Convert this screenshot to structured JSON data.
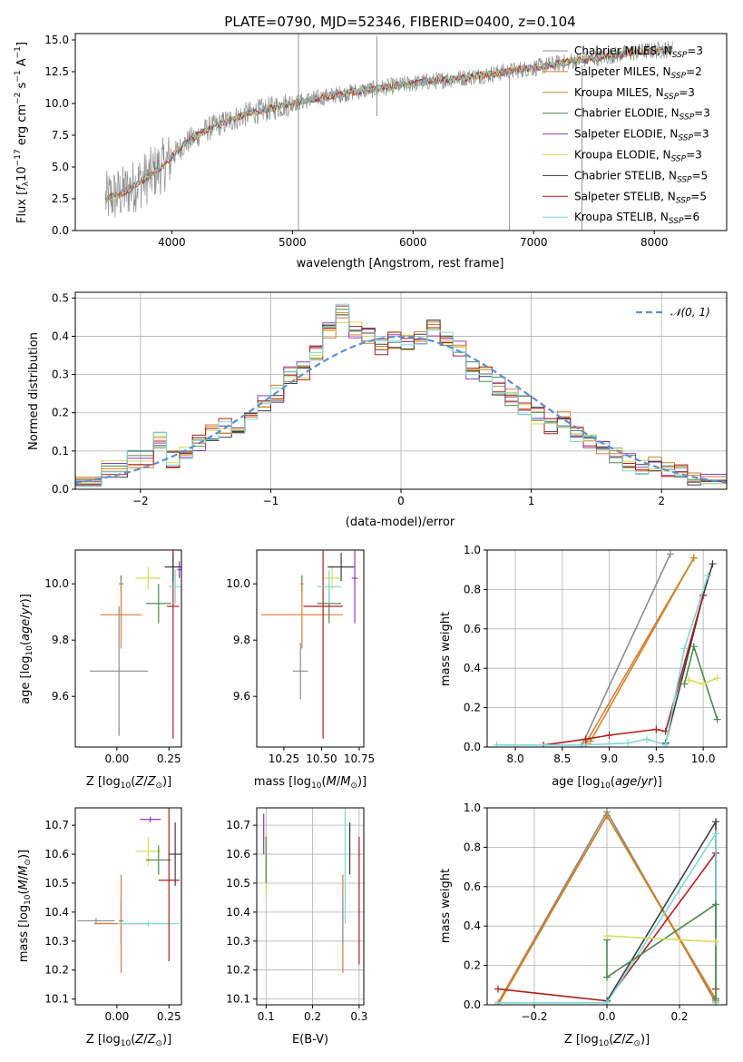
{
  "title": "PLATE=0790, MJD=52346, FIBERID=0400, z=0.104",
  "colors": {
    "series": [
      "#8c8c8c",
      "#e07b3a",
      "#c98522",
      "#4d8a4d",
      "#8f3cb5",
      "#d6dc5a",
      "#3d3d3d",
      "#b01e1e",
      "#7ed8dc"
    ],
    "gauss": "#5a8fd6",
    "grid": "#b0b0b0"
  },
  "chart_data": [
    {
      "id": "spectrum",
      "type": "line",
      "xlabel": "wavelength [Angstrom, rest frame]",
      "ylabel": "Flux [f_λ10^-17 erg cm^-2 s^-1 A^-1]",
      "xlim": [
        3200,
        8600
      ],
      "ylim": [
        0,
        15.5
      ],
      "xticks": [
        4000,
        5000,
        6000,
        7000,
        8000
      ],
      "yticks": [
        0.0,
        2.5,
        5.0,
        7.5,
        10.0,
        12.5,
        15.0
      ],
      "grid": false,
      "legend_position": "right",
      "continuum": {
        "x": [
          3450,
          3600,
          3800,
          3950,
          4100,
          4300,
          4600,
          4900,
          5200,
          5500,
          5800,
          6100,
          6400,
          6700,
          7000,
          7300,
          7600,
          7900,
          8150
        ],
        "y": [
          2.5,
          3.0,
          4.2,
          5.3,
          6.8,
          8.0,
          9.1,
          9.8,
          10.4,
          10.9,
          11.3,
          11.7,
          12.0,
          12.4,
          12.8,
          13.3,
          13.7,
          14.1,
          14.3
        ]
      },
      "spikes": [
        {
          "x": 5050,
          "y_low": 0,
          "y_high": 15.5
        },
        {
          "x": 5700,
          "y_low": 9.0,
          "y_high": 15.3
        },
        {
          "x": 6800,
          "y_low": 0,
          "y_high": 12.3
        },
        {
          "x": 7400,
          "y_low": 0,
          "y_high": 13.0
        }
      ],
      "legend": [
        "Chabrier MILES, N_SSP=3",
        "Salpeter MILES, N_SSP=2",
        "Kroupa MILES, N_SSP=3",
        "Chabrier ELODIE, N_SSP=3",
        "Salpeter ELODIE, N_SSP=3",
        "Kroupa ELODIE, N_SSP=3",
        "Chabrier STELIB, N_SSP=5",
        "Salpeter STELIB, N_SSP=5",
        "Kroupa STELIB, N_SSP=6"
      ],
      "legend_series_index": [
        0,
        1,
        2,
        3,
        4,
        5,
        6,
        7,
        8
      ]
    },
    {
      "id": "residuals",
      "type": "line",
      "xlabel": "(data-model)/error",
      "ylabel": "Normed distribution",
      "xlim": [
        -2.5,
        2.5
      ],
      "ylim": [
        0,
        0.515
      ],
      "xticks": [
        -2,
        -1,
        0,
        1,
        2
      ],
      "yticks": [
        0.0,
        0.1,
        0.2,
        0.3,
        0.4,
        0.5
      ],
      "grid": true,
      "legend_position": "top-right",
      "legend": [
        "𝒩(0, 1)"
      ],
      "bin_edges": [
        -2.5,
        -2.3,
        -2.1,
        -1.9,
        -1.8,
        -1.7,
        -1.6,
        -1.5,
        -1.4,
        -1.3,
        -1.2,
        -1.1,
        -1.0,
        -0.9,
        -0.8,
        -0.7,
        -0.6,
        -0.5,
        -0.4,
        -0.3,
        -0.2,
        -0.1,
        0.0,
        0.1,
        0.2,
        0.3,
        0.4,
        0.5,
        0.6,
        0.7,
        0.8,
        0.9,
        1.0,
        1.1,
        1.2,
        1.3,
        1.4,
        1.5,
        1.6,
        1.7,
        1.8,
        1.9,
        2.0,
        2.1,
        2.2,
        2.3,
        2.5
      ],
      "hist_base": [
        0.03,
        0.05,
        0.08,
        0.13,
        0.08,
        0.1,
        0.12,
        0.15,
        0.16,
        0.17,
        0.2,
        0.22,
        0.25,
        0.3,
        0.31,
        0.36,
        0.41,
        0.46,
        0.42,
        0.4,
        0.37,
        0.39,
        0.38,
        0.4,
        0.42,
        0.39,
        0.37,
        0.31,
        0.3,
        0.27,
        0.24,
        0.22,
        0.19,
        0.16,
        0.18,
        0.14,
        0.13,
        0.11,
        0.09,
        0.07,
        0.06,
        0.07,
        0.05,
        0.04,
        0.03,
        0.025
      ],
      "gauss": {
        "mean": 0,
        "sigma": 1
      }
    },
    {
      "id": "age-vs-z",
      "type": "scatter",
      "xlabel": "Z [log10(Z/Z⊙)]",
      "ylabel": "age [log10(age/yr)]",
      "xlim": [
        -0.2,
        0.31
      ],
      "ylim": [
        9.42,
        10.12
      ],
      "xticks": [
        0.0,
        0.25
      ],
      "yticks": [
        9.6,
        9.8,
        10.0
      ],
      "grid": false,
      "points": [
        {
          "s": 3,
          "x": 0.02,
          "y": 10.0,
          "xerr": 0.01,
          "yerr": 0.03
        },
        {
          "s": 1,
          "x": 0.02,
          "y": 9.89,
          "xerr": 0.1,
          "yerr": 0.12
        },
        {
          "s": 0,
          "x": 0.01,
          "y": 9.69,
          "xerr": 0.14,
          "yerr": 0.23
        },
        {
          "s": 5,
          "x": 0.15,
          "y": 10.02,
          "xerr": 0.06,
          "yerr": 0.04
        },
        {
          "s": 3,
          "x": 0.2,
          "y": 9.93,
          "xerr": 0.06,
          "yerr": 0.07
        },
        {
          "s": 7,
          "x": 0.27,
          "y": 9.92,
          "xerr": 0.03,
          "yerr": 0.47
        },
        {
          "s": 6,
          "x": 0.27,
          "y": 10.06,
          "xerr": 0.04,
          "yerr": 0.05
        },
        {
          "s": 8,
          "x": 0.28,
          "y": 9.99,
          "xerr": 0.03,
          "yerr": 0.06
        },
        {
          "s": 4,
          "x": 0.3,
          "y": 10.05,
          "xerr": 0.01,
          "yerr": 0.03
        }
      ]
    },
    {
      "id": "age-vs-mass",
      "type": "scatter",
      "xlabel": "mass [log10(M/M⊙)]",
      "ylabel": "",
      "xlim": [
        10.07,
        10.78
      ],
      "ylim": [
        9.42,
        10.12
      ],
      "xticks": [
        10.25,
        10.5,
        10.75
      ],
      "yticks": [
        9.6,
        9.8,
        10.0
      ],
      "grid": false,
      "points": [
        {
          "s": 3,
          "x": 10.37,
          "y": 10.0,
          "xerr": 0.01,
          "yerr": 0.03
        },
        {
          "s": 1,
          "x": 10.37,
          "y": 9.89,
          "xerr": 0.27,
          "yerr": 0.12
        },
        {
          "s": 0,
          "x": 10.36,
          "y": 9.69,
          "xerr": 0.05,
          "yerr": 0.1
        },
        {
          "s": 5,
          "x": 10.57,
          "y": 10.02,
          "xerr": 0.06,
          "yerr": 0.04
        },
        {
          "s": 3,
          "x": 10.55,
          "y": 9.93,
          "xerr": 0.08,
          "yerr": 0.07
        },
        {
          "s": 7,
          "x": 10.51,
          "y": 9.92,
          "xerr": 0.13,
          "yerr": 0.47
        },
        {
          "s": 6,
          "x": 10.63,
          "y": 10.06,
          "xerr": 0.09,
          "yerr": 0.05
        },
        {
          "s": 8,
          "x": 10.55,
          "y": 9.99,
          "xerr": 0.08,
          "yerr": 0.06
        },
        {
          "s": 4,
          "x": 10.72,
          "y": 10.02,
          "xerr": 0.02,
          "yerr": 0.16
        }
      ]
    },
    {
      "id": "mass-weight-vs-age",
      "type": "line",
      "xlabel": "age [log10(age/yr)]",
      "ylabel": "mass weight",
      "xlim": [
        7.7,
        10.25
      ],
      "ylim": [
        0,
        1.0
      ],
      "xticks": [
        8.0,
        8.5,
        9.0,
        9.5,
        10.0
      ],
      "yticks": [
        0.0,
        0.2,
        0.4,
        0.6,
        0.8,
        1.0
      ],
      "grid": true,
      "series": [
        {
          "s": 0,
          "x": [
            8.7,
            9.65
          ],
          "y": [
            0.0,
            0.98
          ]
        },
        {
          "s": 1,
          "x": [
            8.75,
            9.9
          ],
          "y": [
            0.02,
            0.96
          ]
        },
        {
          "s": 2,
          "x": [
            8.8,
            9.9
          ],
          "y": [
            0.03,
            0.96
          ]
        },
        {
          "s": 6,
          "x": [
            9.6,
            10.0,
            10.1
          ],
          "y": [
            0.02,
            0.77,
            0.93
          ]
        },
        {
          "s": 7,
          "x": [
            8.3,
            8.75,
            9.0,
            9.5,
            9.6,
            10.0
          ],
          "y": [
            0.01,
            0.04,
            0.06,
            0.09,
            0.08,
            0.77
          ]
        },
        {
          "s": 8,
          "x": [
            7.8,
            8.7,
            9.2,
            9.4,
            9.6,
            9.8,
            10.05
          ],
          "y": [
            0.01,
            0.01,
            0.02,
            0.04,
            0.01,
            0.5,
            0.87
          ]
        },
        {
          "s": 3,
          "x": [
            9.8,
            9.9,
            10.15
          ],
          "y": [
            0.32,
            0.51,
            0.14
          ]
        },
        {
          "s": 5,
          "x": [
            9.85,
            10.0,
            10.15
          ],
          "y": [
            0.34,
            0.32,
            0.35
          ]
        }
      ]
    },
    {
      "id": "mass-vs-z",
      "type": "scatter",
      "xlabel": "Z [log10(Z/Z⊙)]",
      "ylabel": "mass [log10(M/M⊙)]",
      "xlim": [
        -0.2,
        0.31
      ],
      "ylim": [
        10.08,
        10.76
      ],
      "xticks": [
        0.0,
        0.25
      ],
      "yticks": [
        10.1,
        10.2,
        10.3,
        10.4,
        10.5,
        10.6,
        10.7
      ],
      "grid": false,
      "points": [
        {
          "s": 0,
          "x": -0.1,
          "y": 10.37,
          "xerr": 0.09,
          "yerr": 0.01
        },
        {
          "s": 3,
          "x": 0.02,
          "y": 10.37,
          "xerr": 0.01,
          "yerr": 0.08
        },
        {
          "s": 1,
          "x": 0.02,
          "y": 10.36,
          "xerr": 0.13,
          "yerr": 0.17
        },
        {
          "s": 8,
          "x": 0.15,
          "y": 10.36,
          "xerr": 0.15,
          "yerr": 0.01
        },
        {
          "s": 4,
          "x": 0.16,
          "y": 10.72,
          "xerr": 0.05,
          "yerr": 0.01
        },
        {
          "s": 5,
          "x": 0.15,
          "y": 10.61,
          "xerr": 0.06,
          "yerr": 0.05
        },
        {
          "s": 3,
          "x": 0.2,
          "y": 10.58,
          "xerr": 0.06,
          "yerr": 0.05
        },
        {
          "s": 7,
          "x": 0.25,
          "y": 10.51,
          "xerr": 0.05,
          "yerr": 0.28
        },
        {
          "s": 6,
          "x": 0.28,
          "y": 10.6,
          "xerr": 0.03,
          "yerr": 0.11
        }
      ]
    },
    {
      "id": "mass-vs-ebv",
      "type": "scatter",
      "xlabel": "E(B-V)",
      "ylabel": "",
      "xlim": [
        0.08,
        0.31
      ],
      "ylim": [
        10.08,
        10.76
      ],
      "xticks": [
        0.1,
        0.2,
        0.3
      ],
      "yticks": [
        10.1,
        10.2,
        10.3,
        10.4,
        10.5,
        10.6,
        10.7
      ],
      "grid": true,
      "points": [
        {
          "s": 4,
          "x": 0.095,
          "y": 10.67,
          "xerr": 0.0,
          "yerr": 0.07
        },
        {
          "s": 5,
          "x": 0.1,
          "y": 10.57,
          "xerr": 0.0,
          "yerr": 0.1
        },
        {
          "s": 3,
          "x": 0.1,
          "y": 10.58,
          "xerr": 0.0,
          "yerr": 0.08
        },
        {
          "s": 1,
          "x": 0.265,
          "y": 10.36,
          "xerr": 0.0,
          "yerr": 0.17
        },
        {
          "s": 8,
          "x": 0.27,
          "y": 10.56,
          "xerr": 0.0,
          "yerr": 0.2
        },
        {
          "s": 0,
          "x": 0.265,
          "y": 10.37,
          "xerr": 0.0,
          "yerr": 0.08
        },
        {
          "s": 6,
          "x": 0.28,
          "y": 10.62,
          "xerr": 0.0,
          "yerr": 0.09
        },
        {
          "s": 7,
          "x": 0.3,
          "y": 10.44,
          "xerr": 0.0,
          "yerr": 0.22
        }
      ]
    },
    {
      "id": "mass-weight-vs-z",
      "type": "line",
      "xlabel": "Z [log10(Z/Z⊙)]",
      "ylabel": "mass weight",
      "xlim": [
        -0.33,
        0.33
      ],
      "ylim": [
        0,
        1.0
      ],
      "xticks": [
        -0.2,
        0.0,
        0.2
      ],
      "yticks": [
        0.0,
        0.2,
        0.4,
        0.6,
        0.8,
        1.0
      ],
      "grid": true,
      "series": [
        {
          "s": 0,
          "x": [
            -0.3,
            0.0,
            0.3
          ],
          "y": [
            0.01,
            0.98,
            0.01
          ]
        },
        {
          "s": 1,
          "x": [
            -0.3,
            0.0,
            0.3
          ],
          "y": [
            0.01,
            0.96,
            0.03
          ]
        },
        {
          "s": 2,
          "x": [
            -0.3,
            0.0,
            0.3
          ],
          "y": [
            0.0,
            0.96,
            0.02
          ]
        },
        {
          "s": 7,
          "x": [
            -0.3,
            0.0,
            0.3,
            0.3
          ],
          "y": [
            0.08,
            0.02,
            0.77,
            0.08
          ]
        },
        {
          "s": 6,
          "x": [
            0.0,
            0.3,
            0.3
          ],
          "y": [
            0.02,
            0.93,
            0.03
          ]
        },
        {
          "s": 8,
          "x": [
            -0.3,
            0.0,
            0.3,
            0.3
          ],
          "y": [
            0.01,
            0.01,
            0.87,
            0.01
          ]
        },
        {
          "s": 3,
          "x": [
            0.0,
            0.0,
            0.3,
            0.3
          ],
          "y": [
            0.33,
            0.14,
            0.51,
            0.03
          ]
        },
        {
          "s": 5,
          "x": [
            0.0,
            0.3
          ],
          "y": [
            0.35,
            0.32
          ]
        }
      ]
    }
  ]
}
